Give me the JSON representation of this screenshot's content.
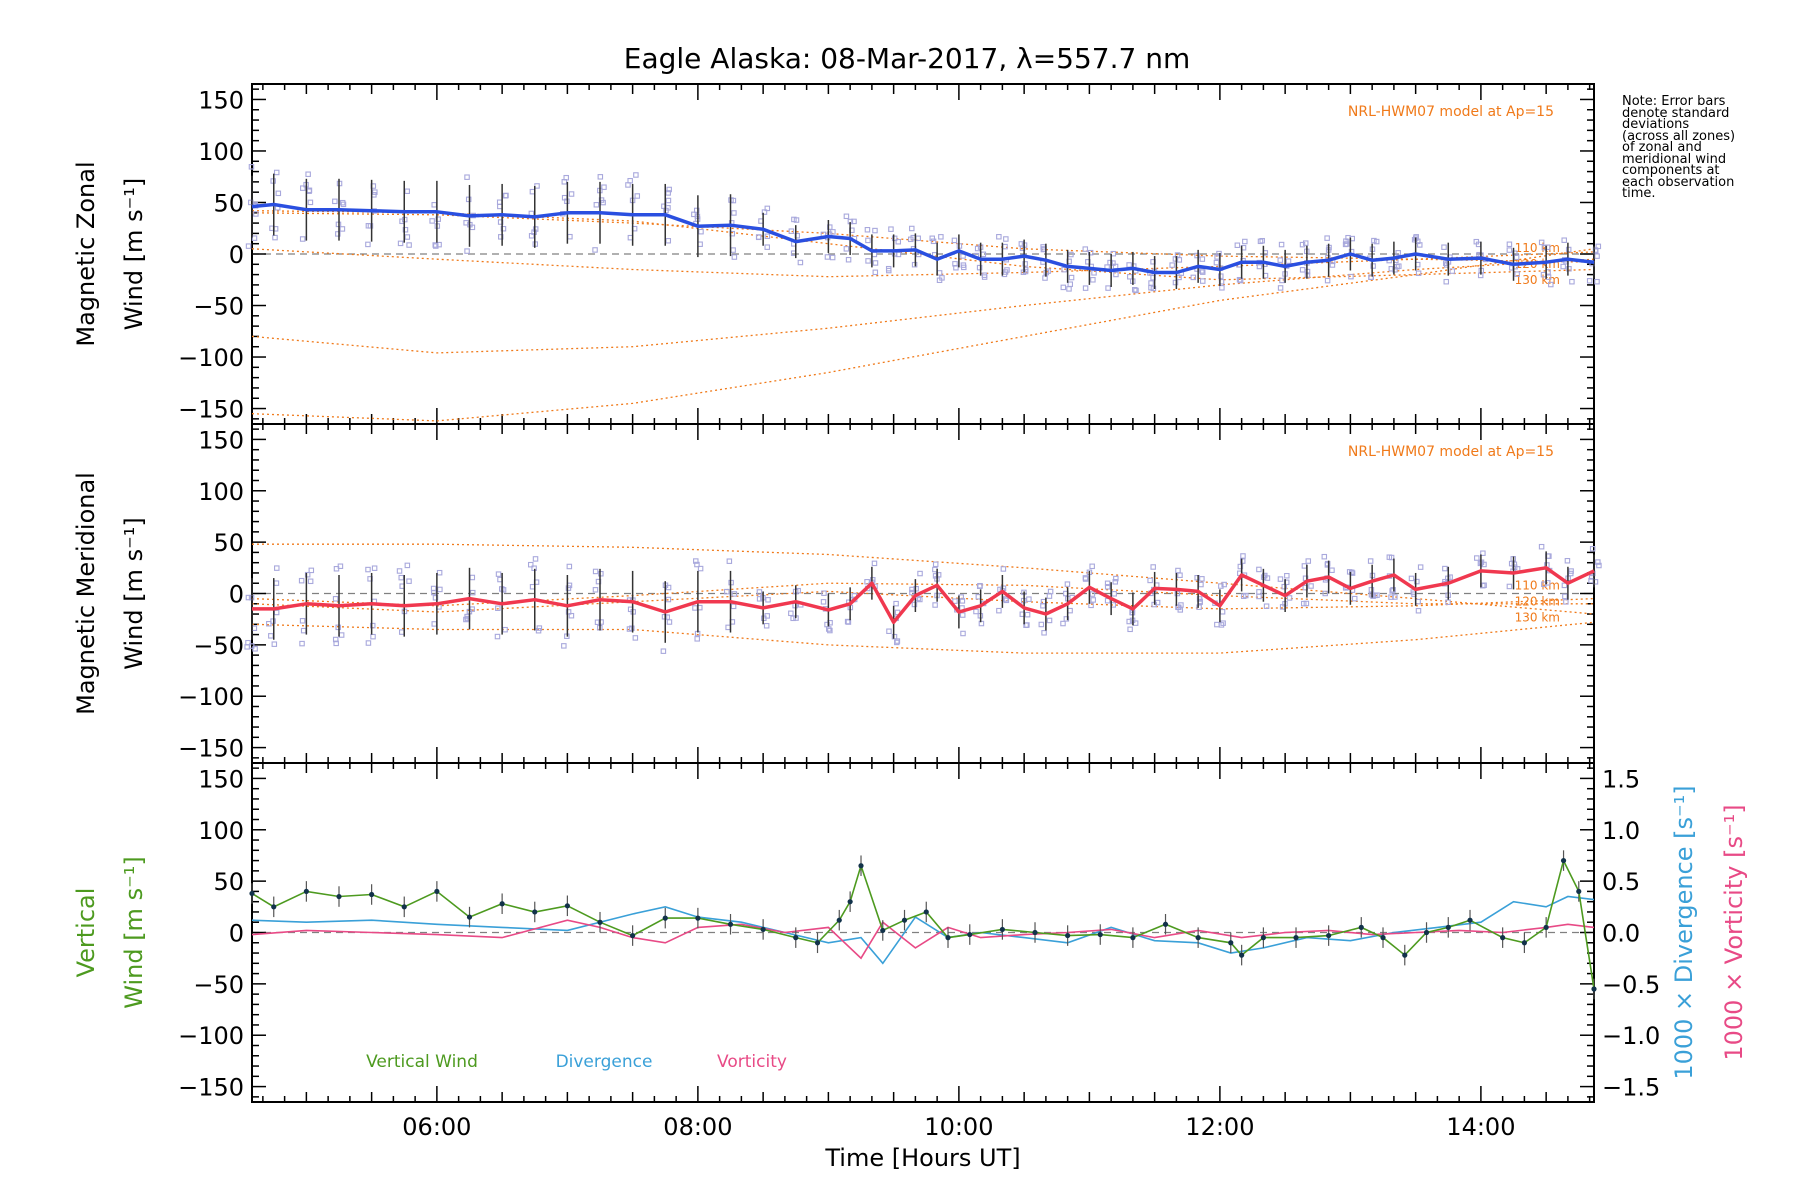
{
  "title": "Eagle Alaska: 08-Mar-2017, λ=557.7 nm",
  "note": [
    "Note: Error bars",
    "denote standard",
    "deviations",
    "(across all zones)",
    "of zonal and",
    "meridional wind",
    "components at",
    "each observation",
    "time."
  ],
  "colors": {
    "zonal": "#2a4fe0",
    "meridional": "#f0384f",
    "vertical": "#4d9a1f",
    "divergence": "#3aa0d8",
    "vorticity": "#e84a86",
    "model": "#f07a1a",
    "scatter": "#a8a8dc",
    "zero_line": "#808080"
  },
  "chart_data": [
    {
      "type": "line",
      "panel": "zonal",
      "ylabel": [
        "Magnetic Zonal",
        "Wind [m s⁻¹]"
      ],
      "ylim": [
        -165,
        165
      ],
      "yticks": [
        "150",
        "100",
        "50",
        "0",
        "−50",
        "−100",
        "−150"
      ],
      "ytick_values": [
        150,
        100,
        50,
        0,
        -50,
        -100,
        -150
      ],
      "xlim": [
        "04:35",
        "14:52"
      ],
      "model_label": "NRL-HWM07 model at Ap=15",
      "model_altitudes": [
        "110 km",
        "120 km",
        "130 km"
      ],
      "series": [
        {
          "x": [
            "04:35",
            "04:45",
            "05:00",
            "05:15",
            "05:30",
            "05:45",
            "06:00",
            "06:15",
            "06:30",
            "06:45",
            "07:00",
            "07:15",
            "07:30",
            "07:45",
            "08:00",
            "08:15",
            "08:30",
            "08:45",
            "09:00",
            "09:10",
            "09:20",
            "09:30",
            "09:40",
            "09:50",
            "10:00",
            "10:10",
            "10:20",
            "10:30",
            "10:40",
            "10:50",
            "11:00",
            "11:10",
            "11:20",
            "11:30",
            "11:40",
            "11:50",
            "12:00",
            "12:10",
            "12:20",
            "12:30",
            "12:40",
            "12:50",
            "13:00",
            "13:10",
            "13:20",
            "13:30",
            "13:45",
            "14:00",
            "14:15",
            "14:30",
            "14:40",
            "14:52"
          ],
          "values": [
            46,
            48,
            43,
            43,
            42,
            41,
            41,
            37,
            38,
            36,
            40,
            40,
            38,
            38,
            27,
            28,
            24,
            12,
            17,
            15,
            3,
            3,
            4,
            -5,
            3,
            -5,
            -5,
            -2,
            -6,
            -12,
            -14,
            -16,
            -14,
            -18,
            -18,
            -12,
            -15,
            -8,
            -8,
            -12,
            -8,
            -6,
            0,
            -6,
            -4,
            0,
            -5,
            -4,
            -10,
            -8,
            -5,
            -8
          ]
        }
      ],
      "model_curves": [
        {
          "x": [
            "04:35",
            "06:00",
            "07:30",
            "09:00",
            "10:30",
            "12:00",
            "13:30",
            "14:52"
          ],
          "values": [
            40,
            38,
            30,
            20,
            5,
            -2,
            -5,
            -8
          ]
        },
        {
          "x": [
            "04:35",
            "06:00",
            "07:30",
            "09:00",
            "10:30",
            "12:00",
            "13:30",
            "14:52"
          ],
          "values": [
            42,
            40,
            32,
            10,
            -12,
            -25,
            -20,
            -15
          ]
        },
        {
          "x": [
            "04:35",
            "06:00",
            "07:30",
            "09:00",
            "10:30",
            "12:00",
            "13:30",
            "14:52"
          ],
          "values": [
            5,
            -5,
            -15,
            -22,
            -18,
            -12,
            -5,
            2
          ]
        },
        {
          "x": [
            "04:35",
            "06:00",
            "07:30",
            "09:00",
            "10:30",
            "12:00",
            "13:30",
            "14:52"
          ],
          "values": [
            -80,
            -96,
            -90,
            -72,
            -50,
            -30,
            -15,
            -5
          ]
        },
        {
          "x": [
            "04:35",
            "06:00",
            "07:30",
            "09:00",
            "10:30",
            "12:00",
            "13:30",
            "14:52"
          ],
          "values": [
            -155,
            -162,
            -145,
            -115,
            -80,
            -45,
            -20,
            5
          ]
        }
      ]
    },
    {
      "type": "line",
      "panel": "meridional",
      "ylabel": [
        "Magnetic Meridional",
        "Wind [m s⁻¹]"
      ],
      "ylim": [
        -165,
        165
      ],
      "yticks": [
        "150",
        "100",
        "50",
        "0",
        "−50",
        "−100",
        "−150"
      ],
      "ytick_values": [
        150,
        100,
        50,
        0,
        -50,
        -100,
        -150
      ],
      "xlim": [
        "04:35",
        "14:52"
      ],
      "model_label": "NRL-HWM07 model at Ap=15",
      "model_altitudes": [
        "110 km",
        "120 km",
        "130 km"
      ],
      "series": [
        {
          "x": [
            "04:35",
            "04:45",
            "05:00",
            "05:15",
            "05:30",
            "05:45",
            "06:00",
            "06:15",
            "06:30",
            "06:45",
            "07:00",
            "07:15",
            "07:30",
            "07:45",
            "08:00",
            "08:15",
            "08:30",
            "08:45",
            "09:00",
            "09:10",
            "09:20",
            "09:30",
            "09:40",
            "09:50",
            "10:00",
            "10:10",
            "10:20",
            "10:30",
            "10:40",
            "10:50",
            "11:00",
            "11:10",
            "11:20",
            "11:30",
            "11:40",
            "11:50",
            "12:00",
            "12:10",
            "12:20",
            "12:30",
            "12:40",
            "12:50",
            "13:00",
            "13:10",
            "13:20",
            "13:30",
            "13:45",
            "14:00",
            "14:15",
            "14:30",
            "14:40",
            "14:52"
          ],
          "values": [
            -15,
            -15,
            -10,
            -12,
            -10,
            -12,
            -10,
            -5,
            -10,
            -6,
            -12,
            -6,
            -8,
            -18,
            -8,
            -8,
            -14,
            -8,
            -16,
            -10,
            10,
            -28,
            -2,
            8,
            -18,
            -12,
            2,
            -14,
            -20,
            -10,
            6,
            -5,
            -15,
            5,
            4,
            2,
            -12,
            18,
            8,
            -2,
            12,
            16,
            5,
            12,
            18,
            4,
            10,
            22,
            20,
            25,
            10,
            22
          ]
        }
      ],
      "model_curves": [
        {
          "x": [
            "04:35",
            "06:00",
            "07:30",
            "09:00",
            "10:30",
            "12:00",
            "13:30",
            "14:52"
          ],
          "values": [
            48,
            48,
            45,
            38,
            25,
            10,
            -5,
            -20
          ]
        },
        {
          "x": [
            "04:35",
            "06:00",
            "07:30",
            "09:00",
            "10:30",
            "12:00",
            "13:30",
            "14:52"
          ],
          "values": [
            -5,
            -12,
            -2,
            10,
            8,
            -2,
            -10,
            -10
          ]
        },
        {
          "x": [
            "04:35",
            "06:00",
            "07:30",
            "09:00",
            "10:30",
            "12:00",
            "13:30",
            "14:52"
          ],
          "values": [
            -10,
            -18,
            -8,
            2,
            -8,
            -15,
            -12,
            -5
          ]
        },
        {
          "x": [
            "04:35",
            "06:00",
            "07:30",
            "09:00",
            "10:30",
            "12:00",
            "13:30",
            "14:52"
          ],
          "values": [
            -30,
            -35,
            -35,
            -50,
            -58,
            -58,
            -45,
            -28
          ]
        }
      ]
    },
    {
      "type": "line",
      "panel": "vertical",
      "ylabel": [
        "Vertical",
        "Wind [m s⁻¹]"
      ],
      "ylim": [
        -165,
        165
      ],
      "yticks": [
        "150",
        "100",
        "50",
        "0",
        "−50",
        "−100",
        "−150"
      ],
      "ytick_values": [
        150,
        100,
        50,
        0,
        -50,
        -100,
        -150
      ],
      "y2label": [
        "1000 × Divergence [s⁻¹]",
        "1000 × Vorticity [s⁻¹]"
      ],
      "y2lim": [
        -1.65,
        1.65
      ],
      "y2ticks": [
        "1.5",
        "1.0",
        "0.5",
        "0.0",
        "−0.5",
        "−1.0",
        "−1.5"
      ],
      "y2tick_values": [
        1.5,
        1.0,
        0.5,
        0.0,
        -0.5,
        -1.0,
        -1.5
      ],
      "xlim": [
        "04:35",
        "14:52"
      ],
      "xticks": [
        "06:00",
        "08:00",
        "10:00",
        "12:00",
        "14:00"
      ],
      "xlabel": "Time [Hours UT]",
      "legend": [
        "Vertical Wind",
        "Divergence",
        "Vorticity"
      ],
      "series": [
        {
          "name": "Vertical Wind",
          "x": [
            "04:35",
            "04:45",
            "05:00",
            "05:15",
            "05:30",
            "05:45",
            "06:00",
            "06:15",
            "06:30",
            "06:45",
            "07:00",
            "07:15",
            "07:30",
            "07:45",
            "08:00",
            "08:15",
            "08:30",
            "08:45",
            "08:55",
            "09:05",
            "09:10",
            "09:15",
            "09:25",
            "09:35",
            "09:45",
            "09:55",
            "10:05",
            "10:20",
            "10:35",
            "10:50",
            "11:05",
            "11:20",
            "11:35",
            "11:50",
            "12:05",
            "12:10",
            "12:20",
            "12:35",
            "12:50",
            "13:05",
            "13:15",
            "13:25",
            "13:35",
            "13:45",
            "13:55",
            "14:10",
            "14:20",
            "14:30",
            "14:38",
            "14:45",
            "14:52"
          ],
          "values": [
            38,
            25,
            40,
            35,
            37,
            25,
            40,
            15,
            28,
            20,
            26,
            10,
            -3,
            14,
            14,
            8,
            3,
            -5,
            -10,
            12,
            30,
            65,
            2,
            12,
            20,
            -5,
            -2,
            3,
            0,
            -3,
            -2,
            -5,
            8,
            -5,
            -10,
            -22,
            -5,
            -5,
            -3,
            5,
            -5,
            -22,
            0,
            5,
            12,
            -5,
            -10,
            5,
            70,
            40,
            -55
          ]
        },
        {
          "name": "Divergence",
          "x": [
            "04:35",
            "05:00",
            "05:30",
            "06:00",
            "06:30",
            "07:00",
            "07:30",
            "07:45",
            "08:00",
            "08:20",
            "08:40",
            "09:00",
            "09:15",
            "09:25",
            "09:40",
            "09:55",
            "10:10",
            "10:30",
            "10:50",
            "11:10",
            "11:30",
            "11:50",
            "12:05",
            "12:20",
            "12:40",
            "13:00",
            "13:20",
            "13:40",
            "14:00",
            "14:15",
            "14:30",
            "14:40",
            "14:52"
          ],
          "values": [
            0.12,
            0.1,
            0.12,
            0.08,
            0.05,
            0.02,
            0.18,
            0.25,
            0.15,
            0.1,
            0.0,
            -0.1,
            -0.05,
            -0.3,
            0.15,
            -0.05,
            0.0,
            -0.05,
            -0.1,
            0.05,
            -0.08,
            -0.1,
            -0.2,
            -0.15,
            -0.05,
            -0.08,
            0.0,
            0.05,
            0.1,
            0.3,
            0.25,
            0.35,
            0.32
          ]
        },
        {
          "name": "Vorticity",
          "x": [
            "04:35",
            "05:00",
            "05:30",
            "06:00",
            "06:30",
            "07:00",
            "07:15",
            "07:30",
            "07:45",
            "08:00",
            "08:20",
            "08:40",
            "09:00",
            "09:15",
            "09:25",
            "09:40",
            "09:55",
            "10:10",
            "10:30",
            "10:50",
            "11:10",
            "11:30",
            "11:50",
            "12:10",
            "12:30",
            "12:50",
            "13:10",
            "13:30",
            "13:50",
            "14:10",
            "14:30",
            "14:40",
            "14:52"
          ],
          "values": [
            -0.02,
            0.02,
            0.0,
            -0.02,
            -0.05,
            0.12,
            0.05,
            -0.05,
            -0.1,
            0.05,
            0.08,
            0.0,
            0.05,
            -0.25,
            0.1,
            -0.15,
            0.05,
            -0.05,
            -0.02,
            0.0,
            0.03,
            -0.05,
            0.02,
            -0.05,
            0.0,
            0.02,
            -0.02,
            0.0,
            0.02,
            0.0,
            0.05,
            0.08,
            0.05
          ]
        }
      ]
    }
  ]
}
